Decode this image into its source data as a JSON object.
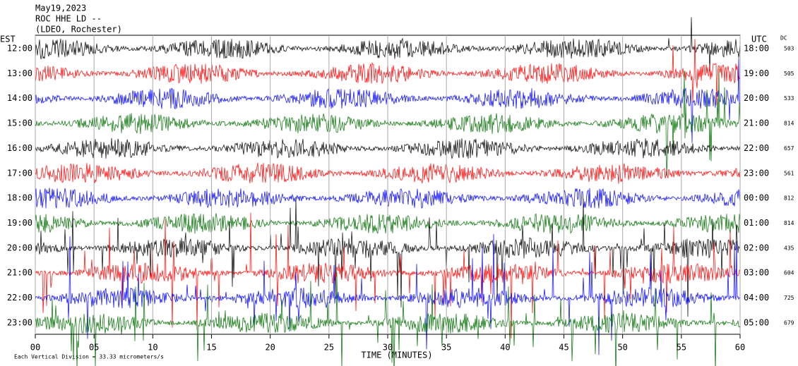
{
  "chart_data": {
    "type": "helicorder",
    "title": "May19,2023",
    "subtitle": "ROC HHE LD --",
    "station": "(LDEO, Rochester)",
    "left_axis_label": "EST",
    "right_axis_label": "UTC",
    "dc_label": "DC",
    "xlabel": "TIME (MINUTES)",
    "scale_note": "Each Vertical Division = 33.33 micrometers/s",
    "xlim": [
      0,
      60
    ],
    "xticks": [
      {
        "value": 0,
        "label": "00"
      },
      {
        "value": 5,
        "label": "05"
      },
      10,
      15,
      20,
      25,
      30,
      35,
      40,
      45,
      50,
      55,
      60
    ],
    "rows": [
      {
        "local": "12:00",
        "utc": "18:00",
        "dc": 503,
        "color": "#000000"
      },
      {
        "local": "13:00",
        "utc": "19:00",
        "dc": 505,
        "color": "#ff0000"
      },
      {
        "local": "14:00",
        "utc": "20:00",
        "dc": 533,
        "color": "#0000ff"
      },
      {
        "local": "15:00",
        "utc": "21:00",
        "dc": 814,
        "color": "#007000"
      },
      {
        "local": "16:00",
        "utc": "22:00",
        "dc": 657,
        "color": "#000000"
      },
      {
        "local": "17:00",
        "utc": "23:00",
        "dc": 561,
        "color": "#ff0000"
      },
      {
        "local": "18:00",
        "utc": "00:00",
        "dc": 812,
        "color": "#0000ff"
      },
      {
        "local": "19:00",
        "utc": "01:00",
        "dc": 814,
        "color": "#007000"
      },
      {
        "local": "20:00",
        "utc": "02:00",
        "dc": 435,
        "color": "#000000"
      },
      {
        "local": "21:00",
        "utc": "03:00",
        "dc": 604,
        "color": "#ff0000"
      },
      {
        "local": "22:00",
        "utc": "04:00",
        "dc": 725,
        "color": "#0000ff"
      },
      {
        "local": "23:00",
        "utc": "05:00",
        "dc": 679,
        "color": "#007000"
      }
    ]
  }
}
